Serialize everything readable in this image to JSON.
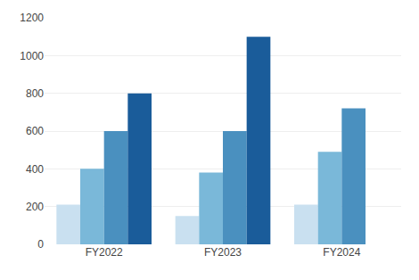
{
  "chart_data": {
    "type": "bar",
    "categories": [
      "FY2022",
      "FY2023",
      "FY2024"
    ],
    "series": [
      {
        "color": "#c9e0f0",
        "values": [
          210,
          150,
          210
        ]
      },
      {
        "color": "#7ab8d9",
        "values": [
          400,
          380,
          490
        ]
      },
      {
        "color": "#4a90bf",
        "values": [
          600,
          600,
          720
        ]
      },
      {
        "color": "#1a5c9a",
        "values": [
          800,
          1100,
          null
        ]
      }
    ],
    "ylim": [
      0,
      1200
    ],
    "yticks": [
      0,
      200,
      400,
      600,
      800,
      1000,
      1200
    ],
    "grid": true
  }
}
